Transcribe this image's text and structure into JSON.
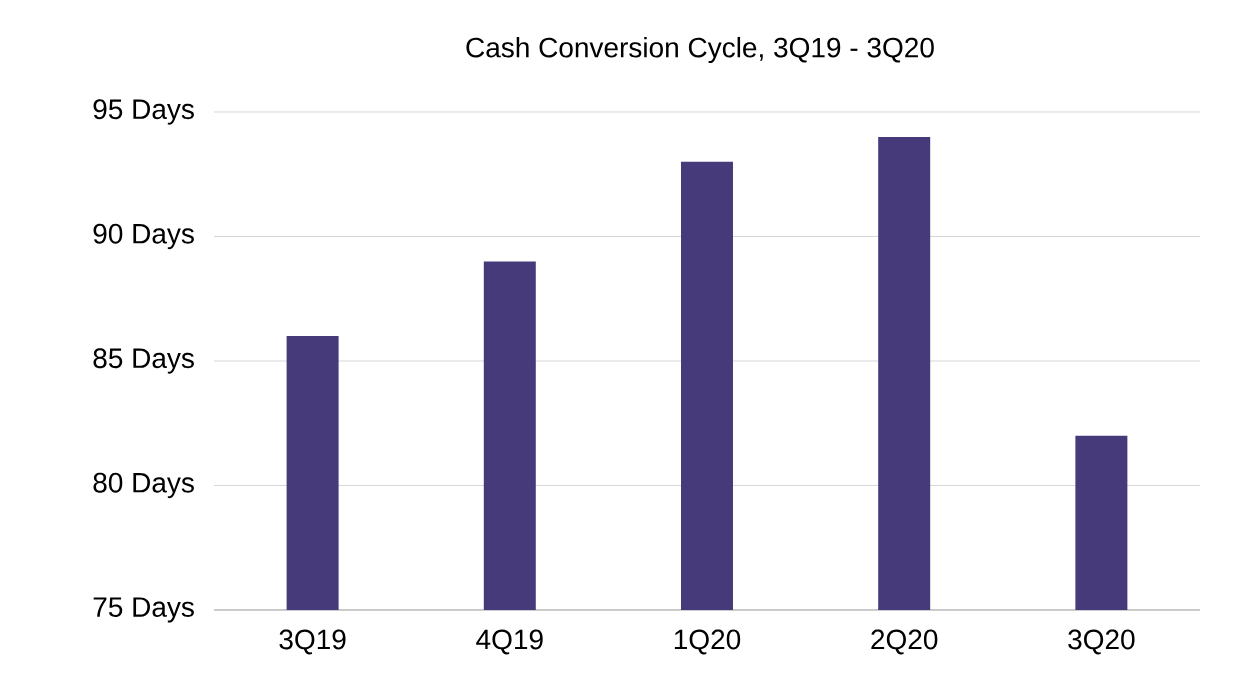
{
  "chart_data": {
    "type": "bar",
    "title": "Cash Conversion Cycle, 3Q19 - 3Q20",
    "categories": [
      "3Q19",
      "4Q19",
      "1Q20",
      "2Q20",
      "3Q20"
    ],
    "values": [
      86,
      89,
      93,
      94,
      82
    ],
    "color": "#463a7b",
    "ylim": [
      75,
      95
    ],
    "yticks": [
      {
        "value": 75,
        "label": "75 Days"
      },
      {
        "value": 80,
        "label": "80 Days"
      },
      {
        "value": 85,
        "label": "85 Days"
      },
      {
        "value": 90,
        "label": "90 Days"
      },
      {
        "value": 95,
        "label": "95 Days"
      }
    ],
    "grid": "y"
  }
}
